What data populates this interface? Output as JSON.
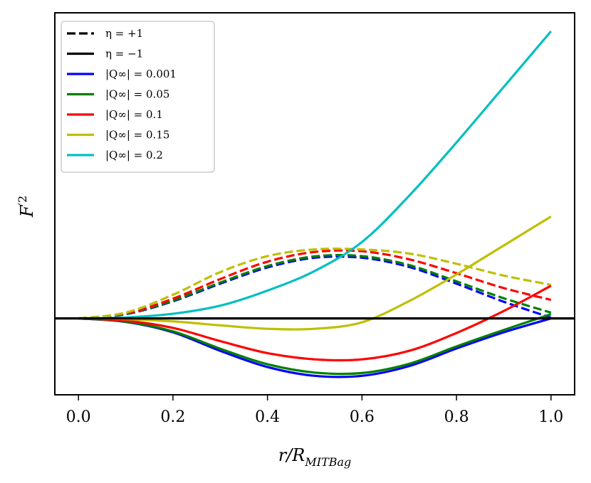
{
  "chart_data": {
    "type": "line",
    "title": "",
    "xlabel": "r/R_{MIT Bag}",
    "ylabel": "F'^2",
    "xlim": [
      -0.05,
      1.05
    ],
    "ylim": [
      -0.33,
      1.32
    ],
    "x_ticks": [
      "0.0",
      "0.2",
      "0.4",
      "0.6",
      "0.8",
      "1.0"
    ],
    "grid": false,
    "legend": {
      "placement": "top-left",
      "entries": [
        {
          "label": "η = +1",
          "color": "#000000",
          "dash": true
        },
        {
          "label": "η = −1",
          "color": "#000000",
          "dash": false
        },
        {
          "label": "|Q∞| = 0.001",
          "color": "#0000ff",
          "dash": false
        },
        {
          "label": "|Q∞| = 0.05",
          "color": "#008000",
          "dash": false
        },
        {
          "label": "|Q∞| = 0.1",
          "color": "#ff0000",
          "dash": false
        },
        {
          "label": "|Q∞| = 0.15",
          "color": "#bfbf00",
          "dash": false
        },
        {
          "label": "|Q∞| = 0.2",
          "color": "#00bfbf",
          "dash": false
        }
      ]
    },
    "x": [
      0.0,
      0.1,
      0.2,
      0.3,
      0.4,
      0.5,
      0.6,
      0.7,
      0.8,
      0.9,
      1.0
    ],
    "series": [
      {
        "name": "|Q∞| = 0.001",
        "eta": "+1",
        "color": "#0000ff",
        "dash": true,
        "values": [
          0.0,
          0.018,
          0.074,
          0.15,
          0.22,
          0.262,
          0.262,
          0.222,
          0.15,
          0.072,
          0.003
        ]
      },
      {
        "name": "|Q∞| = 0.05",
        "eta": "+1",
        "color": "#008000",
        "dash": true,
        "values": [
          0.0,
          0.019,
          0.077,
          0.155,
          0.226,
          0.268,
          0.269,
          0.23,
          0.16,
          0.087,
          0.025
        ]
      },
      {
        "name": "|Q∞| = 0.1",
        "eta": "+1",
        "color": "#ff0000",
        "dash": true,
        "values": [
          0.0,
          0.021,
          0.085,
          0.17,
          0.245,
          0.287,
          0.29,
          0.255,
          0.195,
          0.131,
          0.08
        ]
      },
      {
        "name": "|Q∞| = 0.15",
        "eta": "+1",
        "color": "#bfbf00",
        "dash": true,
        "values": [
          0.0,
          0.025,
          0.102,
          0.2,
          0.269,
          0.298,
          0.298,
          0.28,
          0.236,
          0.185,
          0.145
        ]
      },
      {
        "name": "|Q∞| = 0.001",
        "eta": "-1",
        "color": "#0000ff",
        "dash": false,
        "values": [
          0.0,
          -0.015,
          -0.06,
          -0.14,
          -0.21,
          -0.248,
          -0.248,
          -0.206,
          -0.13,
          -0.06,
          0.0
        ]
      },
      {
        "name": "|Q∞| = 0.05",
        "eta": "-1",
        "color": "#008000",
        "dash": false,
        "values": [
          0.0,
          -0.014,
          -0.056,
          -0.131,
          -0.198,
          -0.234,
          -0.236,
          -0.196,
          -0.121,
          -0.05,
          0.018
        ]
      },
      {
        "name": "|Q∞| = 0.1",
        "eta": "-1",
        "color": "#ff0000",
        "dash": false,
        "values": [
          0.0,
          -0.01,
          -0.041,
          -0.098,
          -0.15,
          -0.177,
          -0.177,
          -0.14,
          -0.063,
          0.032,
          0.141
        ]
      },
      {
        "name": "|Q∞| = 0.15",
        "eta": "-1",
        "color": "#bfbf00",
        "dash": false,
        "values": [
          0.0,
          -0.003,
          -0.013,
          -0.03,
          -0.045,
          -0.045,
          -0.017,
          0.075,
          0.19,
          0.315,
          0.44
        ]
      },
      {
        "name": "|Q∞| = 0.2",
        "eta": "-1",
        "color": "#00bfbf",
        "dash": false,
        "values": [
          0.0,
          0.004,
          0.02,
          0.055,
          0.12,
          0.205,
          0.33,
          0.53,
          0.76,
          1.0,
          1.24
        ]
      },
      {
        "name": "η = −1",
        "eta": "-1",
        "color": "#000000",
        "dash": false,
        "full_width": true,
        "values": [
          0,
          0,
          0,
          0,
          0,
          0,
          0,
          0,
          0,
          0,
          0
        ]
      }
    ]
  }
}
